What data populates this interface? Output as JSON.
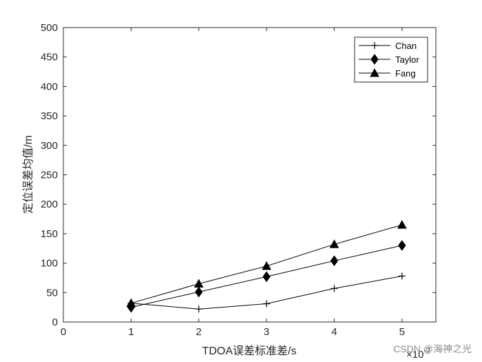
{
  "chart_data": {
    "type": "line",
    "xlabel": "TDOA误差标准差/s",
    "ylabel": "定位误差均值/m",
    "x_exponent_label": "×10",
    "x_exponent_power": "-7",
    "x": [
      1,
      2,
      3,
      4,
      5
    ],
    "xlim": [
      0,
      5.5
    ],
    "ylim": [
      0,
      500
    ],
    "xticks": [
      "0",
      "1",
      "2",
      "3",
      "4",
      "5"
    ],
    "yticks": [
      "0",
      "50",
      "100",
      "150",
      "200",
      "250",
      "300",
      "350",
      "400",
      "450",
      "500"
    ],
    "grid": false,
    "legend_position": "top-right",
    "series": [
      {
        "name": "Chan",
        "marker": "plus",
        "values": [
          32,
          22,
          31,
          57,
          78
        ]
      },
      {
        "name": "Taylor",
        "marker": "diamond",
        "values": [
          25,
          51,
          77,
          104,
          130
        ]
      },
      {
        "name": "Fang",
        "marker": "triangle",
        "values": [
          32,
          65,
          95,
          132,
          165
        ]
      }
    ],
    "line_color": "#000000"
  },
  "watermark": "CSDN @海神之光"
}
